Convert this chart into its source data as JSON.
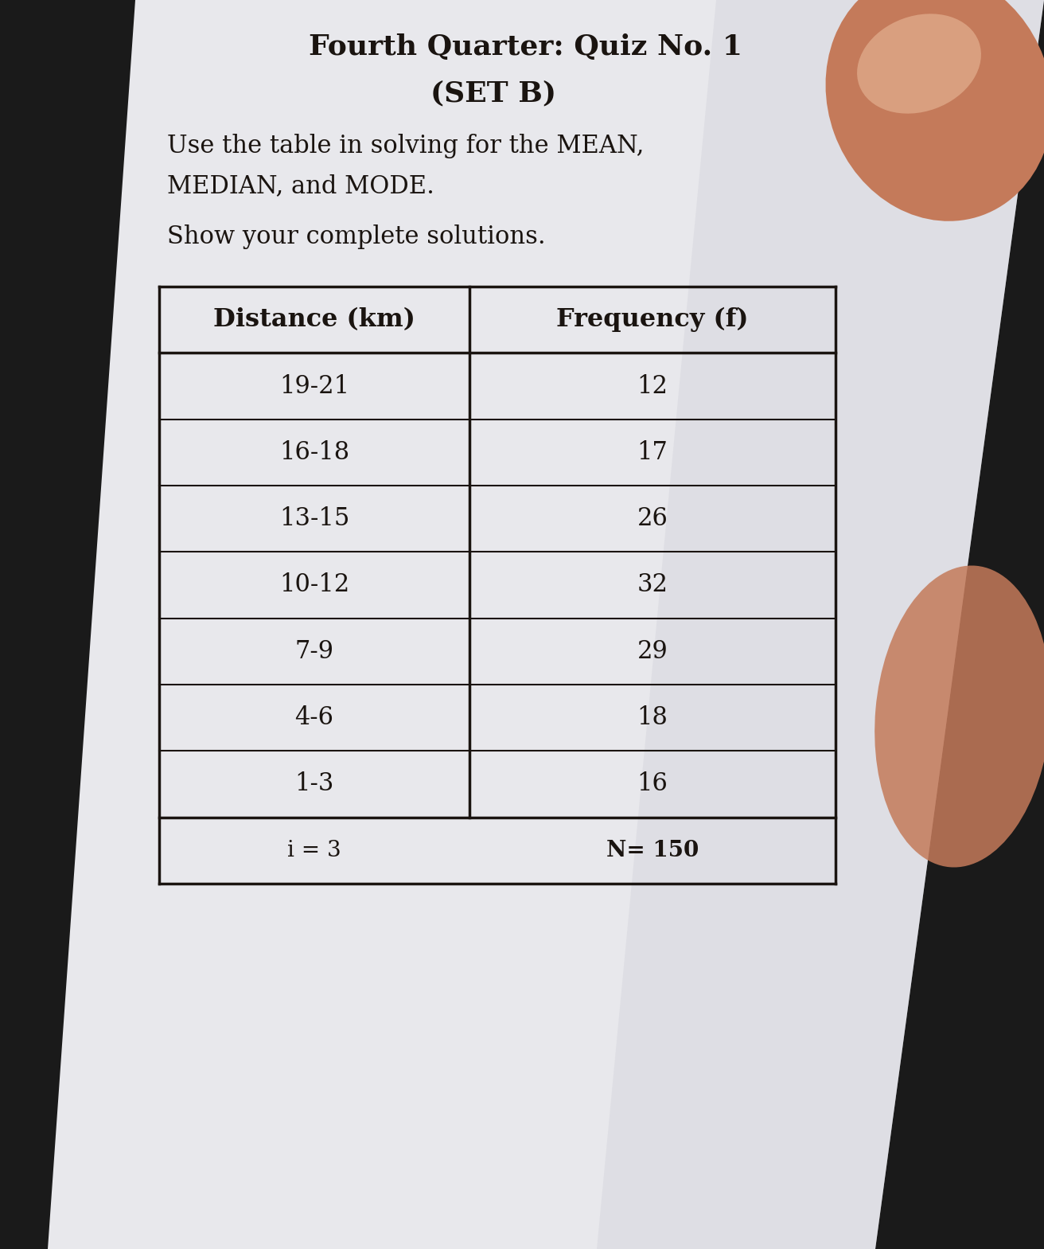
{
  "title1": "Fourth Quarter: Quiz No. 1",
  "title2": "(SET B)",
  "instruction1": "Use the table in solving for the MEAN,",
  "instruction2": "MEDIAN, and MODE.",
  "instruction3": "Show your complete solutions.",
  "col1_header": "Distance (km)",
  "col2_header": "Frequency (f)",
  "rows": [
    [
      "19-21",
      "12"
    ],
    [
      "16-18",
      "17"
    ],
    [
      "13-15",
      "26"
    ],
    [
      "10-12",
      "32"
    ],
    [
      "7-9",
      "29"
    ],
    [
      "4-6",
      "18"
    ],
    [
      "1-3",
      "16"
    ]
  ],
  "footer_left": "i = 3",
  "footer_right": "N= 150",
  "bg_dark": "#1a1a1a",
  "paper_color": "#e8e8ec",
  "paper_color2": "#d0d0d8",
  "text_color": "#1a1410",
  "table_line_color": "#1a1410",
  "finger_color": "#c87050",
  "title_fontsize": 26,
  "subtitle_fontsize": 26,
  "instruction_fontsize": 22,
  "table_header_fontsize": 23,
  "table_data_fontsize": 22,
  "footer_fontsize": 20
}
